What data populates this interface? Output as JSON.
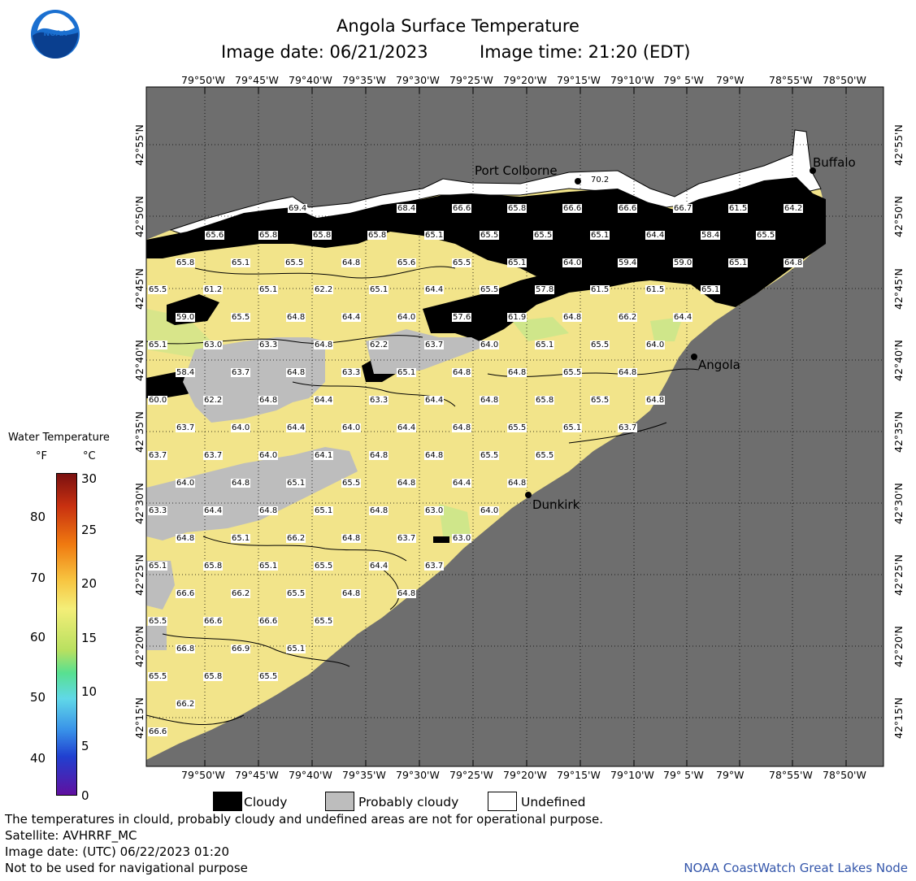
{
  "header": {
    "title": "Angola Surface Temperature",
    "date_label": "Image date: 06/21/2023",
    "time_label": "Image time: 21:20 (EDT)"
  },
  "axes": {
    "lon_labels": [
      "79°50'W",
      "79°45'W",
      "79°40'W",
      "79°35'W",
      "79°30'W",
      "79°25'W",
      "79°20'W",
      "79°15'W",
      "79°10'W",
      "79° 5'W",
      "79°W",
      "78°55'W",
      "78°50'W"
    ],
    "lat_labels": [
      "42°55'N",
      "42°50'N",
      "42°45'N",
      "42°40'N",
      "42°35'N",
      "42°30'N",
      "42°25'N",
      "42°20'N",
      "42°15'N"
    ]
  },
  "colorbar": {
    "title": "Water Temperature",
    "unit_f": "°F",
    "unit_c": "°C",
    "f_ticks": [
      "80",
      "70",
      "60",
      "50",
      "40"
    ],
    "c_ticks": [
      "30",
      "25",
      "20",
      "15",
      "10",
      "5",
      "0"
    ]
  },
  "cities": [
    {
      "name": "Port Colborne"
    },
    {
      "name": "Buffalo"
    },
    {
      "name": "Angola"
    },
    {
      "name": "Dunkirk"
    }
  ],
  "temps": [
    "70.2",
    "69.4",
    "68.4",
    "66.6",
    "65.8",
    "66.6",
    "66.6",
    "66.7",
    "61.5",
    "64.2",
    "65.6",
    "65.8",
    "65.8",
    "65.8",
    "65.1",
    "65.5",
    "65.5",
    "65.1",
    "64.4",
    "58.4",
    "65.5",
    "65.8",
    "65.1",
    "65.5",
    "64.8",
    "65.6",
    "65.5",
    "65.1",
    "64.0",
    "59.4",
    "59.0",
    "65.1",
    "64.8",
    "65.5",
    "61.2",
    "65.1",
    "62.2",
    "65.1",
    "64.4",
    "65.5",
    "57.8",
    "61.5",
    "61.5",
    "65.1",
    "59.0",
    "65.5",
    "64.8",
    "64.4",
    "64.0",
    "57.6",
    "61.9",
    "64.8",
    "66.2",
    "64.4",
    "65.1",
    "63.0",
    "63.3",
    "64.8",
    "62.2",
    "63.7",
    "64.0",
    "65.1",
    "65.5",
    "64.0",
    "58.4",
    "63.7",
    "64.8",
    "63.3",
    "65.1",
    "64.8",
    "64.8",
    "65.5",
    "64.8",
    "60.0",
    "62.2",
    "64.8",
    "64.4",
    "63.3",
    "64.4",
    "64.8",
    "65.8",
    "65.5",
    "64.8",
    "63.7",
    "64.0",
    "64.4",
    "64.0",
    "64.4",
    "64.8",
    "65.5",
    "65.1",
    "63.7",
    "63.7",
    "63.7",
    "64.0",
    "64.1",
    "64.8",
    "64.8",
    "65.5",
    "65.5",
    "64.0",
    "64.8",
    "65.1",
    "65.5",
    "64.8",
    "64.4",
    "64.8",
    "63.3",
    "64.4",
    "64.8",
    "65.1",
    "64.8",
    "63.0",
    "64.0",
    "64.8",
    "65.1",
    "66.2",
    "64.8",
    "63.7",
    "63.0",
    "65.1",
    "65.8",
    "65.1",
    "65.5",
    "64.4",
    "63.7",
    "66.6",
    "66.2",
    "65.5",
    "64.8",
    "64.8",
    "65.5",
    "66.6",
    "66.6",
    "65.5",
    "66.8",
    "66.9",
    "65.1",
    "65.5",
    "65.8",
    "65.5",
    "66.2",
    "66.6"
  ],
  "legend": {
    "cloudy": "Cloudy",
    "probably_cloudy": "Probably cloudy",
    "undefined": "Undefined"
  },
  "footer": {
    "line1": "The temperatures in clould, probably cloudy and undefined areas are not for operational purpose.",
    "line2": "Satellite: AVHRRF_MC",
    "line3": "Image date: (UTC) 06/22/2023  01:20",
    "line4": "Not to be used for navigational purpose",
    "credit": "NOAA CoastWatch Great Lakes Node"
  },
  "colors": {
    "land": "#6e6e6e",
    "water_warm": "#f2e48a",
    "water_cool": "#b8e07a",
    "cloud": "#000000",
    "probable_cloud": "#bdbdbd",
    "undefined": "#ffffff",
    "credit": "#3355aa"
  }
}
